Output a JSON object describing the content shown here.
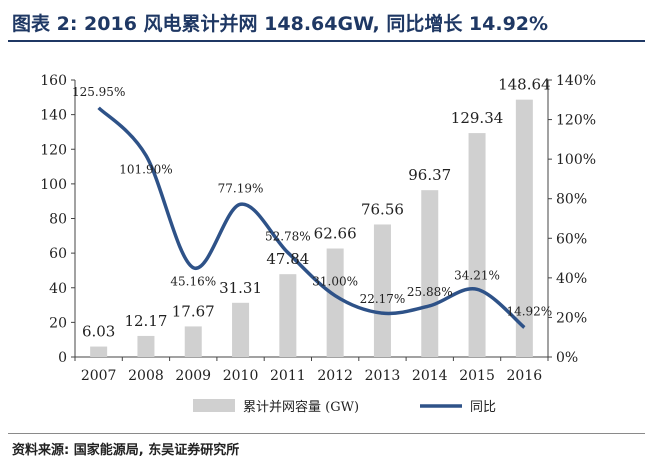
{
  "title": "图表 2: 2016 风电累计并网 148.64GW, 同比增长 14.92%",
  "source": "资料来源: 国家能源局, 东吴证券研究所",
  "colors": {
    "bar": "#d0d0d0",
    "line": "#2e5288",
    "title": "#1f3864",
    "axis_text": "#222222"
  },
  "chart_data": {
    "type": "bar",
    "categories": [
      "2007",
      "2008",
      "2009",
      "2010",
      "2011",
      "2012",
      "2013",
      "2014",
      "2015",
      "2016"
    ],
    "series": [
      {
        "name": "累计并网容量 (GW)",
        "type": "bar",
        "axis": "left",
        "values": [
          6.03,
          12.17,
          17.67,
          31.31,
          47.84,
          62.66,
          76.56,
          96.37,
          129.34,
          148.64
        ],
        "labels": [
          "6.03",
          "12.17",
          "17.67",
          "31.31",
          "47.84",
          "62.66",
          "76.56",
          "96.37",
          "129.34",
          "148.64"
        ]
      },
      {
        "name": "同比",
        "type": "line",
        "smooth": true,
        "axis": "right",
        "values": [
          125.95,
          101.9,
          45.16,
          77.19,
          52.78,
          31.0,
          22.17,
          25.88,
          34.21,
          14.92
        ],
        "labels": [
          "125.95%",
          "101.90%",
          "45.16%",
          "77.19%",
          "52.78%",
          "31.00%",
          "22.17%",
          "25.88%",
          "34.21%",
          "14.92%"
        ]
      }
    ],
    "y_left": {
      "range": [
        0,
        160
      ],
      "ticks": [
        "0",
        "20",
        "40",
        "60",
        "80",
        "100",
        "120",
        "140",
        "160"
      ]
    },
    "y_right": {
      "range": [
        0,
        140
      ],
      "ticks": [
        "0%",
        "20%",
        "40%",
        "60%",
        "80%",
        "100%",
        "120%",
        "140%"
      ]
    },
    "grid": false,
    "legend_position": "bottom"
  }
}
